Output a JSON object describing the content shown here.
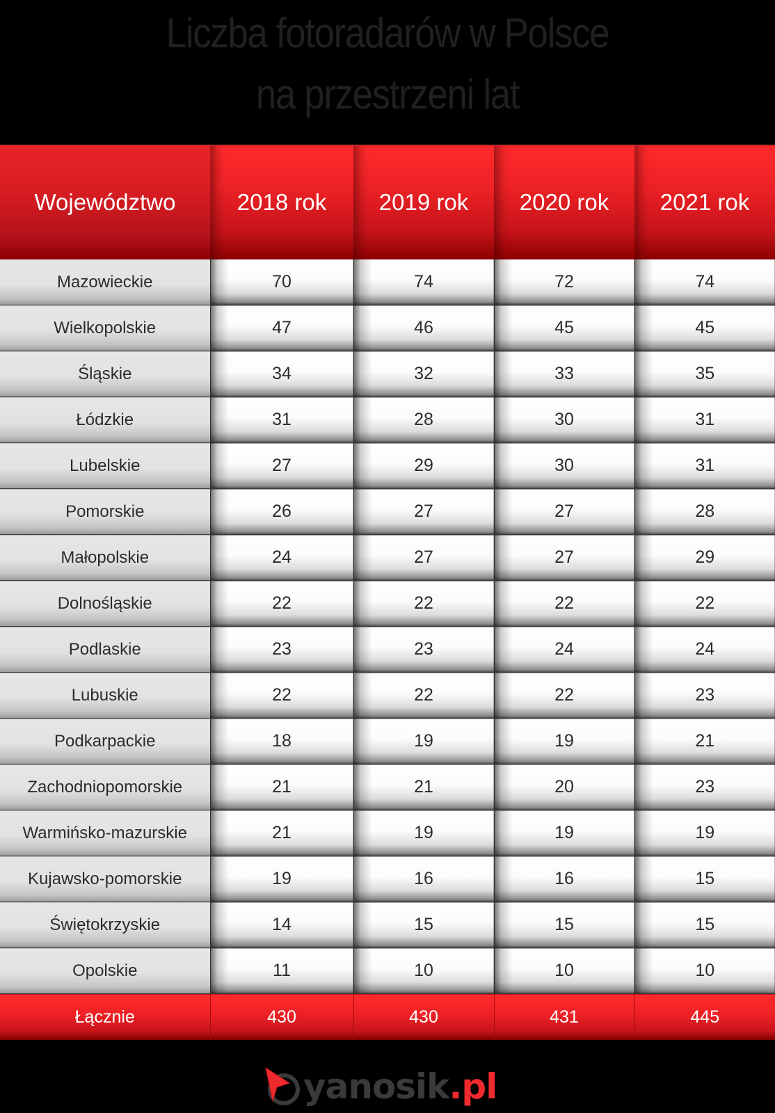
{
  "title": {
    "line1": "Liczba fotoradarów w Polsce",
    "line2": "na przestrzeni lat"
  },
  "table": {
    "headers": [
      "Województwo",
      "2018 rok",
      "2019 rok",
      "2020 rok",
      "2021 rok"
    ],
    "rows": [
      {
        "name": "Mazowieckie",
        "values": [
          "70",
          "74",
          "72",
          "74"
        ]
      },
      {
        "name": "Wielkopolskie",
        "values": [
          "47",
          "46",
          "45",
          "45"
        ]
      },
      {
        "name": "Śląskie",
        "values": [
          "34",
          "32",
          "33",
          "35"
        ]
      },
      {
        "name": "Łódzkie",
        "values": [
          "31",
          "28",
          "30",
          "31"
        ]
      },
      {
        "name": "Lubelskie",
        "values": [
          "27",
          "29",
          "30",
          "31"
        ]
      },
      {
        "name": "Pomorskie",
        "values": [
          "26",
          "27",
          "27",
          "28"
        ]
      },
      {
        "name": "Małopolskie",
        "values": [
          "24",
          "27",
          "27",
          "29"
        ]
      },
      {
        "name": "Dolnośląskie",
        "values": [
          "22",
          "22",
          "22",
          "22"
        ]
      },
      {
        "name": "Podlaskie",
        "values": [
          "23",
          "23",
          "24",
          "24"
        ]
      },
      {
        "name": "Lubuskie",
        "values": [
          "22",
          "22",
          "22",
          "23"
        ]
      },
      {
        "name": "Podkarpackie",
        "values": [
          "18",
          "19",
          "19",
          "21"
        ]
      },
      {
        "name": "Zachodniopomorskie",
        "values": [
          "21",
          "21",
          "20",
          "23"
        ]
      },
      {
        "name": "Warmińsko-mazurskie",
        "values": [
          "21",
          "19",
          "19",
          "19"
        ]
      },
      {
        "name": "Kujawsko-pomorskie",
        "values": [
          "19",
          "16",
          "16",
          "15"
        ]
      },
      {
        "name": "Świętokrzyskie",
        "values": [
          "14",
          "15",
          "15",
          "15"
        ]
      },
      {
        "name": "Opolskie",
        "values": [
          "11",
          "10",
          "10",
          "10"
        ]
      }
    ],
    "total": {
      "label": "Łącznie",
      "values": [
        "430",
        "430",
        "431",
        "445"
      ]
    }
  },
  "logo": {
    "icon": "compass-arrow-icon",
    "name": "yanosik",
    "tld": ".pl"
  },
  "colors": {
    "header_red": "#ee2226",
    "header_dark_red": "#8c0000",
    "name_cell_gray": "#e4e4e4",
    "value_cell_white": "#ffffff",
    "text_dark": "#2b2b2b",
    "background": "#000000"
  },
  "chart_data": {
    "type": "table",
    "title": "Liczba fotoradarów w Polsce na przestrzeni lat",
    "columns": [
      "Województwo",
      "2018 rok",
      "2019 rok",
      "2020 rok",
      "2021 rok"
    ],
    "categories": [
      "Mazowieckie",
      "Wielkopolskie",
      "Śląskie",
      "Łódzkie",
      "Lubelskie",
      "Pomorskie",
      "Małopolskie",
      "Dolnośląskie",
      "Podlaskie",
      "Lubuskie",
      "Podkarpackie",
      "Zachodniopomorskie",
      "Warmińsko-mazurskie",
      "Kujawsko-pomorskie",
      "Świętokrzyskie",
      "Opolskie"
    ],
    "series": [
      {
        "name": "2018 rok",
        "values": [
          70,
          47,
          34,
          31,
          27,
          26,
          24,
          22,
          23,
          22,
          18,
          21,
          21,
          19,
          14,
          11
        ]
      },
      {
        "name": "2019 rok",
        "values": [
          74,
          46,
          32,
          28,
          29,
          27,
          27,
          22,
          23,
          22,
          19,
          21,
          19,
          16,
          15,
          10
        ]
      },
      {
        "name": "2020 rok",
        "values": [
          72,
          45,
          33,
          30,
          30,
          27,
          27,
          22,
          24,
          22,
          19,
          20,
          19,
          16,
          15,
          10
        ]
      },
      {
        "name": "2021 rok",
        "values": [
          74,
          45,
          35,
          31,
          31,
          28,
          29,
          22,
          24,
          23,
          21,
          23,
          19,
          15,
          15,
          10
        ]
      }
    ],
    "totals": {
      "label": "Łącznie",
      "values": [
        430,
        430,
        431,
        445
      ]
    }
  }
}
